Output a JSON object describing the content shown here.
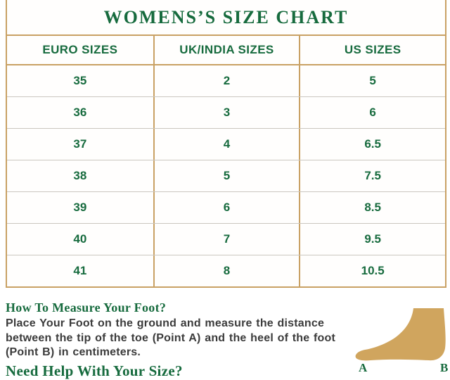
{
  "chart_data": {
    "type": "table",
    "title": "WOMENS’S SIZE CHART",
    "columns": [
      "EURO SIZES",
      "UK/INDIA SIZES",
      "US SIZES"
    ],
    "rows": [
      [
        "35",
        "2",
        "5"
      ],
      [
        "36",
        "3",
        "6"
      ],
      [
        "37",
        "4",
        "6.5"
      ],
      [
        "38",
        "5",
        "7.5"
      ],
      [
        "39",
        "6",
        "8.5"
      ],
      [
        "40",
        "7",
        "9.5"
      ],
      [
        "41",
        "8",
        "10.5"
      ]
    ]
  },
  "sections": {
    "how_to": {
      "heading": "How To Measure Your Foot?",
      "body": "Place Your Foot on the ground and measure the distance between the tip of the toe (Point A) and the heel of the foot (Point B) in centimeters."
    },
    "need_help": {
      "heading": "Need Help With Your Size?"
    }
  },
  "foot_figure": {
    "icon": "foot-side-silhouette-icon",
    "label_a": "A",
    "label_b": "B"
  },
  "colors": {
    "text_green": "#176b3e",
    "border_tan": "#c9a164",
    "row_divider_gray": "#cbc7bf",
    "body_text_gray": "#3b3b3b",
    "foot_tan": "#d0a55e"
  }
}
